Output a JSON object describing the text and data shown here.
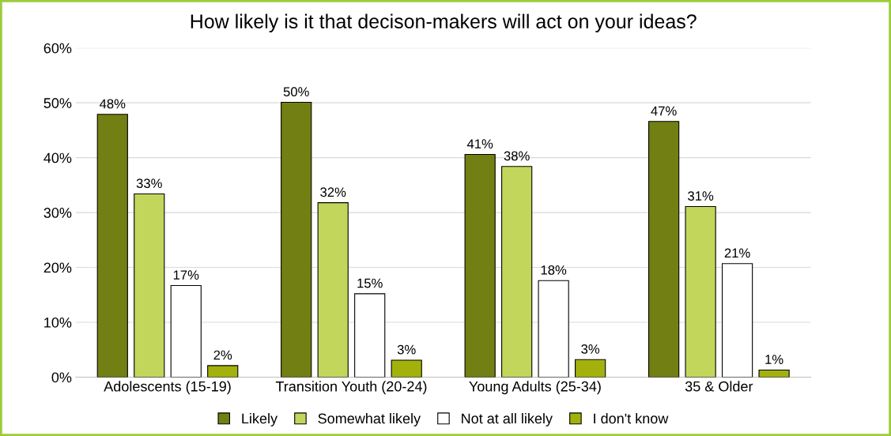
{
  "chart_data": {
    "type": "bar",
    "title": "How likely is it that decison-makers will act on your ideas?",
    "categories": [
      "Adolescents (15-19)",
      "Transition Youth (20-24)",
      "Young Adults (25-34)",
      "35 & Older"
    ],
    "series": [
      {
        "name": "Likely",
        "color": "#727f12",
        "values": [
          47.9,
          50.1,
          40.6,
          46.6
        ],
        "value_labels": [
          "48%",
          "50%",
          "41%",
          "47%"
        ]
      },
      {
        "name": "Somewhat likely",
        "color": "#c2d65c",
        "values": [
          33.4,
          31.8,
          38.4,
          31.1
        ],
        "value_labels": [
          "33%",
          "32%",
          "38%",
          "31%"
        ]
      },
      {
        "name": "Not at all likely",
        "color": "#ffffff",
        "values": [
          16.7,
          15.2,
          17.6,
          20.7
        ],
        "value_labels": [
          "17%",
          "15%",
          "18%",
          "21%"
        ]
      },
      {
        "name": "I don't know",
        "color": "#a3b10c",
        "values": [
          2.1,
          3.1,
          3.2,
          1.3
        ],
        "value_labels": [
          "2%",
          "3%",
          "3%",
          "1%"
        ]
      }
    ],
    "ylim": [
      0,
      60
    ],
    "yticks": [
      {
        "value": 0,
        "label": "0%"
      },
      {
        "value": 10,
        "label": "10%"
      },
      {
        "value": 20,
        "label": "20%"
      },
      {
        "value": 30,
        "label": "30%"
      },
      {
        "value": 40,
        "label": "40%"
      },
      {
        "value": 50,
        "label": "50%"
      },
      {
        "value": 60,
        "label": "60%"
      }
    ],
    "grid": "y",
    "legend": "bottom"
  }
}
